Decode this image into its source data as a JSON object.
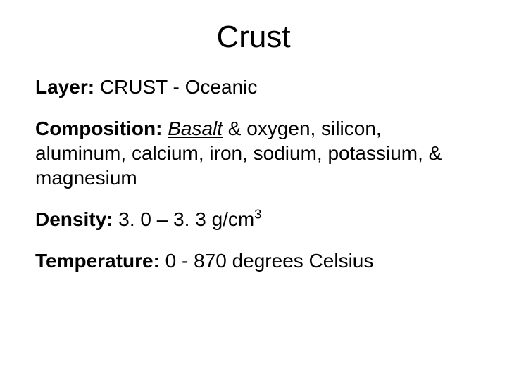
{
  "title": "Crust",
  "layer": {
    "label": "Layer:",
    "value": "CRUST - Oceanic"
  },
  "composition": {
    "label": "Composition:",
    "emphasis": "Basalt",
    "rest": " & oxygen, silicon, aluminum, calcium, iron, sodium, potassium, & magnesium"
  },
  "density": {
    "label": "Density:",
    "value_prefix": "3. 0 – 3. 3 g/cm",
    "value_exponent": "3"
  },
  "temperature": {
    "label": "Temperature:",
    "value": "0 - 870 degrees Celsius"
  },
  "colors": {
    "background": "#ffffff",
    "text": "#000000"
  },
  "typography": {
    "font_family": "Arial",
    "title_fontsize_pt": 33,
    "body_fontsize_pt": 21,
    "title_weight": "normal",
    "label_weight": "bold"
  }
}
